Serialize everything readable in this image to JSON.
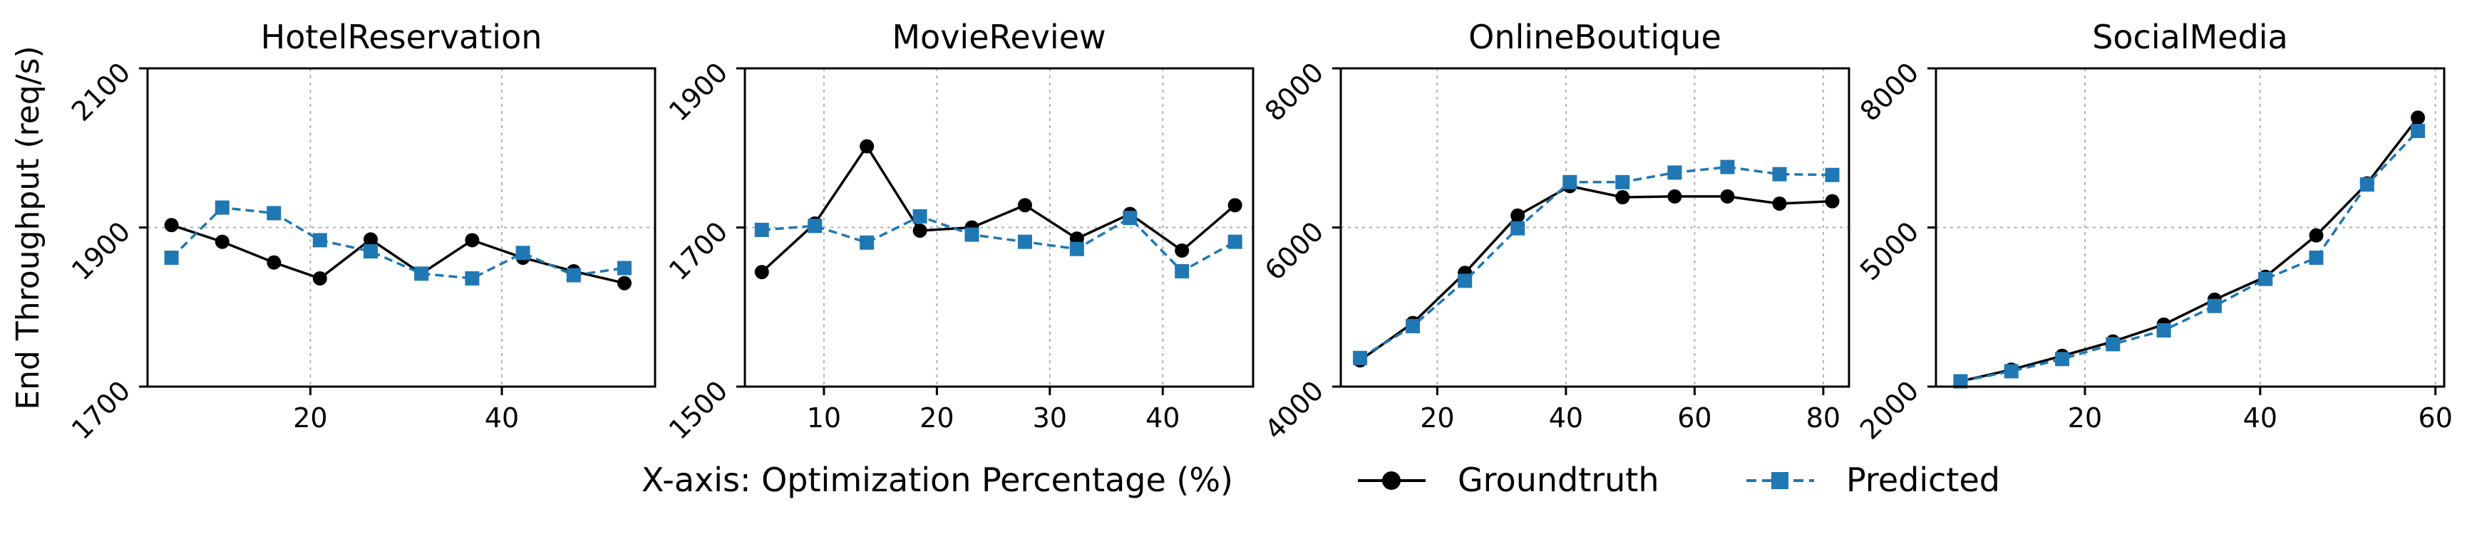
{
  "ylabel": "End Throughput (req/s)",
  "legend": {
    "xaxis_note": "X-axis: Optimization Percentage (%)",
    "groundtruth": "Groundtruth",
    "predicted": "Predicted"
  },
  "colors": {
    "groundtruth": "#000000",
    "predicted": "#1f77b4"
  },
  "chart_data": [
    {
      "type": "line",
      "title": "HotelReservation",
      "xlim": [
        3,
        56
      ],
      "xticks": [
        20,
        40
      ],
      "xtick_labels": [
        "20",
        "40"
      ],
      "ylim": [
        1700,
        2100
      ],
      "yticks": [
        1700,
        1900,
        2100
      ],
      "ytick_labels": [
        "1700",
        "1900",
        "2100"
      ],
      "grid": true,
      "series": [
        {
          "name": "Groundtruth",
          "x": [
            5.5,
            10.8,
            16.2,
            21.0,
            26.3,
            31.6,
            36.9,
            42.2,
            47.5,
            52.8
          ],
          "y": [
            1903,
            1882,
            1856,
            1836,
            1885,
            1842,
            1884,
            1862,
            1845,
            1830
          ]
        },
        {
          "name": "Predicted",
          "x": [
            5.5,
            10.8,
            16.2,
            21.0,
            26.3,
            31.6,
            36.9,
            42.2,
            47.5,
            52.8
          ],
          "y": [
            1862,
            1925,
            1918,
            1884,
            1870,
            1842,
            1836,
            1868,
            1840,
            1849
          ]
        }
      ]
    },
    {
      "type": "line",
      "title": "MovieReview",
      "xlim": [
        3,
        48
      ],
      "xticks": [
        10,
        20,
        30,
        40
      ],
      "xtick_labels": [
        "10",
        "20",
        "30",
        "40"
      ],
      "ylim": [
        1500,
        1900
      ],
      "yticks": [
        1500,
        1700,
        1900
      ],
      "ytick_labels": [
        "1500",
        "1700",
        "1900"
      ],
      "grid": true,
      "series": [
        {
          "name": "Groundtruth",
          "x": [
            4.5,
            9.2,
            13.8,
            18.5,
            23.1,
            27.8,
            32.4,
            37.1,
            41.7,
            46.4
          ],
          "y": [
            1644,
            1705,
            1802,
            1696,
            1700,
            1728,
            1686,
            1717,
            1671,
            1728
          ]
        },
        {
          "name": "Predicted",
          "x": [
            4.5,
            9.2,
            13.8,
            18.5,
            23.1,
            27.8,
            32.4,
            37.1,
            41.7,
            46.4
          ],
          "y": [
            1697,
            1702,
            1681,
            1714,
            1691,
            1682,
            1673,
            1712,
            1645,
            1682
          ]
        }
      ]
    },
    {
      "type": "line",
      "title": "OnlineBoutique",
      "xlim": [
        5,
        84
      ],
      "xticks": [
        20,
        40,
        60,
        80
      ],
      "xtick_labels": [
        "20",
        "40",
        "60",
        "80"
      ],
      "ylim": [
        4000,
        8000
      ],
      "yticks": [
        4000,
        6000,
        8000
      ],
      "ytick_labels": [
        "4000",
        "6000",
        "8000"
      ],
      "grid": true,
      "series": [
        {
          "name": "Groundtruth",
          "x": [
            8.0,
            16.2,
            24.3,
            32.5,
            40.6,
            48.8,
            56.9,
            65.1,
            73.2,
            81.4
          ],
          "y": [
            4330,
            4800,
            5430,
            6150,
            6520,
            6380,
            6390,
            6390,
            6300,
            6330
          ]
        },
        {
          "name": "Predicted",
          "x": [
            8.0,
            16.2,
            24.3,
            32.5,
            40.6,
            48.8,
            56.9,
            65.1,
            73.2,
            81.4
          ],
          "y": [
            4360,
            4760,
            5330,
            5990,
            6570,
            6570,
            6690,
            6760,
            6670,
            6660
          ]
        }
      ]
    },
    {
      "type": "line",
      "title": "SocialMedia",
      "xlim": [
        3,
        61
      ],
      "xticks": [
        20,
        40,
        60
      ],
      "xtick_labels": [
        "20",
        "40",
        "60"
      ],
      "ylim": [
        2000,
        8000
      ],
      "yticks": [
        2000,
        5000,
        8000
      ],
      "ytick_labels": [
        "2000",
        "5000",
        "8000"
      ],
      "grid": true,
      "series": [
        {
          "name": "Groundtruth",
          "x": [
            5.8,
            11.6,
            17.4,
            23.2,
            29.0,
            34.8,
            40.6,
            46.4,
            52.2,
            58.0
          ],
          "y": [
            2100,
            2320,
            2580,
            2850,
            3170,
            3640,
            4070,
            4850,
            5830,
            7070
          ]
        },
        {
          "name": "Predicted",
          "x": [
            5.8,
            11.6,
            17.4,
            23.2,
            29.0,
            34.8,
            40.6,
            46.4,
            52.2,
            58.0
          ],
          "y": [
            2100,
            2290,
            2520,
            2800,
            3060,
            3520,
            4030,
            4430,
            5810,
            6820
          ]
        }
      ]
    }
  ]
}
